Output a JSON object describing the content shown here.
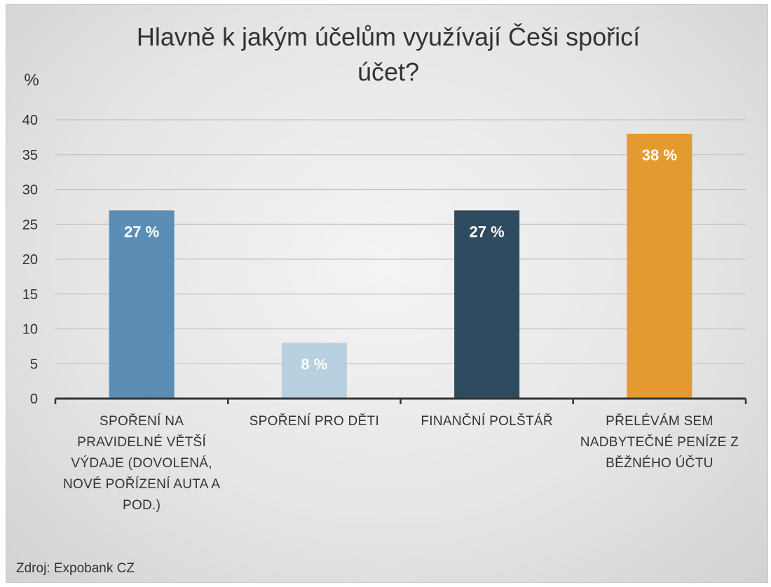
{
  "chart_data": {
    "type": "bar",
    "title_lines": [
      "Hlavně k jakým účelům využívají Češi spořicí",
      "účet?"
    ],
    "ylabel": "%",
    "ylim": [
      0,
      40
    ],
    "yticks": [
      0,
      5,
      10,
      15,
      20,
      25,
      30,
      35,
      40
    ],
    "grid": true,
    "categories": [
      [
        "SPOŘENÍ NA",
        "PRAVIDELNÉ VĚTŠÍ",
        "VÝDAJE (DOVOLENÁ,",
        "NOVÉ POŘÍZENÍ AUTA A",
        "POD.)"
      ],
      [
        "SPOŘENÍ PRO DĚTI"
      ],
      [
        "FINANČNÍ POLŠTÁŘ"
      ],
      [
        "PŘELÉVÁM SEM",
        "NADBYTEČNÉ PENÍZE Z",
        "BĚŽNÉHO ÚČTU"
      ]
    ],
    "values": [
      27,
      8,
      27,
      38
    ],
    "data_labels": [
      "27 %",
      "8 %",
      "27 %",
      "38 %"
    ],
    "colors": [
      "#5b8db5",
      "#b8d0e0",
      "#2e4a5e",
      "#e59a30"
    ]
  },
  "source": "Zdroj: Expobank CZ"
}
